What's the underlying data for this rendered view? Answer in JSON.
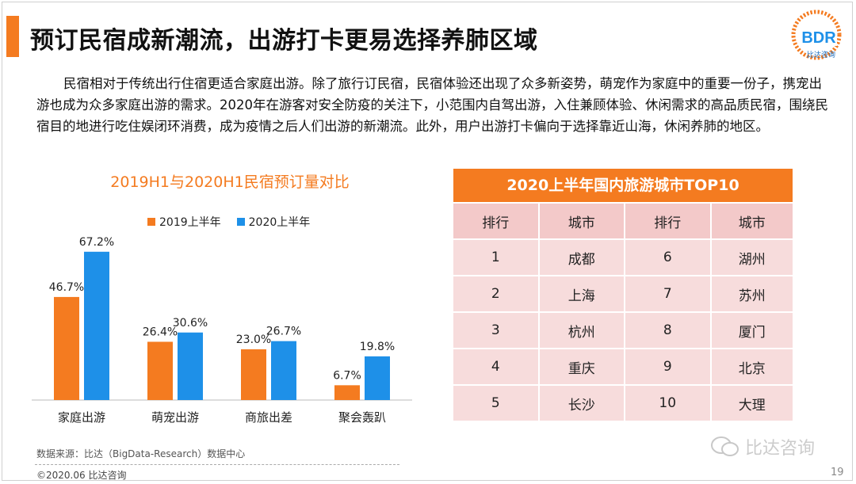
{
  "page": {
    "title": "预订民宿成新潮流，出游打卡更易选择养肺区域",
    "paragraph": "民宿相对于传统出行住宿更适合家庭出游。除了旅行订民宿，民宿体验还出现了众多新姿势，萌宠作为家庭中的重要一份子，携宠出游也成为众多家庭出游的需求。2020年在游客对安全防疫的关注下，小范围内自驾出游，入住兼顾体验、休闲需求的高品质民宿，围绕民宿目的地进行吃住娱闭环消费，成为疫情之后人们出游的新潮流。此外，用户出游打卡偏向于选择靠近山海，休闲养肺的地区。",
    "source": "数据来源：比达（BigData-Research）数据中心",
    "footer": "©2020.06  比达咨询",
    "page_number": "19",
    "watermark": "比达咨询",
    "logo": {
      "text": "BDR",
      "subtext": "比达咨询"
    }
  },
  "colors": {
    "accent": "#f47b20",
    "series1": "#f47b20",
    "series2": "#1e90e8",
    "table_row": "#f7dcdc",
    "table_header_row": "#f3c9c9"
  },
  "chart_data": {
    "type": "bar",
    "title": "2019H1与2020H1民宿预订量对比",
    "categories": [
      "家庭出游",
      "萌宠出游",
      "商旅出差",
      "聚会轰趴"
    ],
    "series": [
      {
        "name": "2019上半年",
        "values": [
          46.7,
          26.4,
          23.0,
          6.7
        ],
        "labels": [
          "46.7%",
          "26.4%",
          "23.0%",
          "6.7%"
        ]
      },
      {
        "name": "2020上半年",
        "values": [
          67.2,
          30.6,
          26.7,
          19.8
        ],
        "labels": [
          "67.2%",
          "30.6%",
          "26.7%",
          "19.8%"
        ]
      }
    ],
    "xlabel": "",
    "ylabel": "",
    "ylim": [
      0,
      70
    ],
    "grid": false,
    "legend": "top"
  },
  "top10": {
    "title": "2020上半年国内旅游城市TOP10",
    "headers": [
      "排行",
      "城市",
      "排行",
      "城市"
    ],
    "rows": [
      [
        "1",
        "成都",
        "6",
        "湖州"
      ],
      [
        "2",
        "上海",
        "7",
        "苏州"
      ],
      [
        "3",
        "杭州",
        "8",
        "厦门"
      ],
      [
        "4",
        "重庆",
        "9",
        "北京"
      ],
      [
        "5",
        "长沙",
        "10",
        "大理"
      ]
    ]
  }
}
